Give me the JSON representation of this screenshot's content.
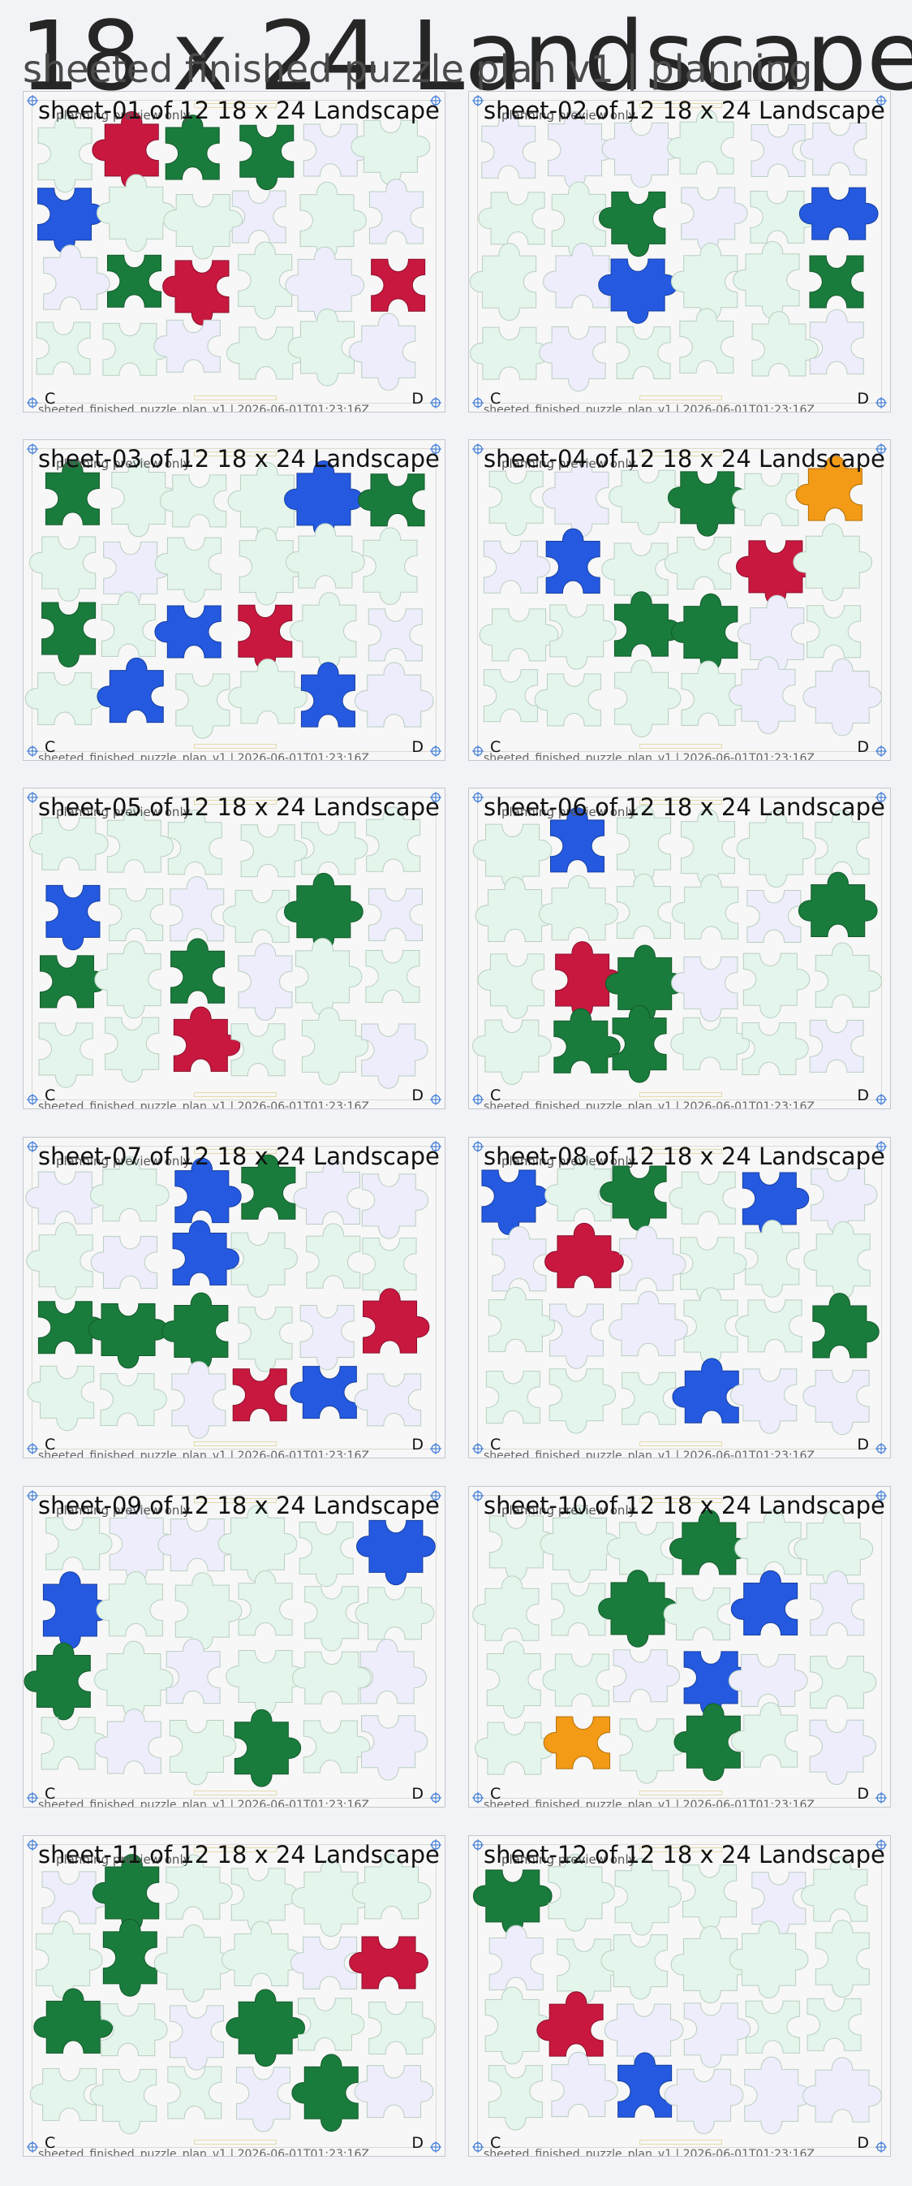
{
  "header": {
    "title": "18 x 24 Landscape",
    "subtitle": "sheeted finished puzzle plan v1 | planning"
  },
  "sheet_note": "planning preview only",
  "sheet_footer": "sheeted_finished_puzzle_plan_v1 | 2026-06-01T01:23:16Z",
  "colors": {
    "green": "#1a7c3c",
    "blue": "#2459e0",
    "red": "#c8183f",
    "orange": "#f39b16",
    "mint": "#e4f5ec",
    "lavender": "#ededfb",
    "outline": "#8db4a0"
  },
  "sheets": [
    {
      "label": "sheet-01 of 12   18 x 24 Landscape",
      "corner_left": "C",
      "corner_right": "D"
    },
    {
      "label": "sheet-02 of 12   18 x 24 Landscape",
      "corner_left": "C",
      "corner_right": "D"
    },
    {
      "label": "sheet-03 of 12   18 x 24 Landscape",
      "corner_left": "C",
      "corner_right": "D"
    },
    {
      "label": "sheet-04 of 12   18 x 24 Landscape",
      "corner_left": "C",
      "corner_right": "D"
    },
    {
      "label": "sheet-05 of 12   18 x 24 Landscape",
      "corner_left": "C",
      "corner_right": "D"
    },
    {
      "label": "sheet-06 of 12   18 x 24 Landscape",
      "corner_left": "C",
      "corner_right": "D"
    },
    {
      "label": "sheet-07 of 12   18 x 24 Landscape",
      "corner_left": "C",
      "corner_right": "D"
    },
    {
      "label": "sheet-08 of 12   18 x 24 Landscape",
      "corner_left": "C",
      "corner_right": "D"
    },
    {
      "label": "sheet-09 of 12   18 x 24 Landscape",
      "corner_left": "C",
      "corner_right": "D"
    },
    {
      "label": "sheet-10 of 12   18 x 24 Landscape",
      "corner_left": "C",
      "corner_right": "D"
    },
    {
      "label": "sheet-11 of 12   18 x 24 Landscape",
      "corner_left": "C",
      "corner_right": "D"
    },
    {
      "label": "sheet-12 of 12   18 x 24 Landscape",
      "corner_left": "C",
      "corner_right": "D"
    }
  ]
}
